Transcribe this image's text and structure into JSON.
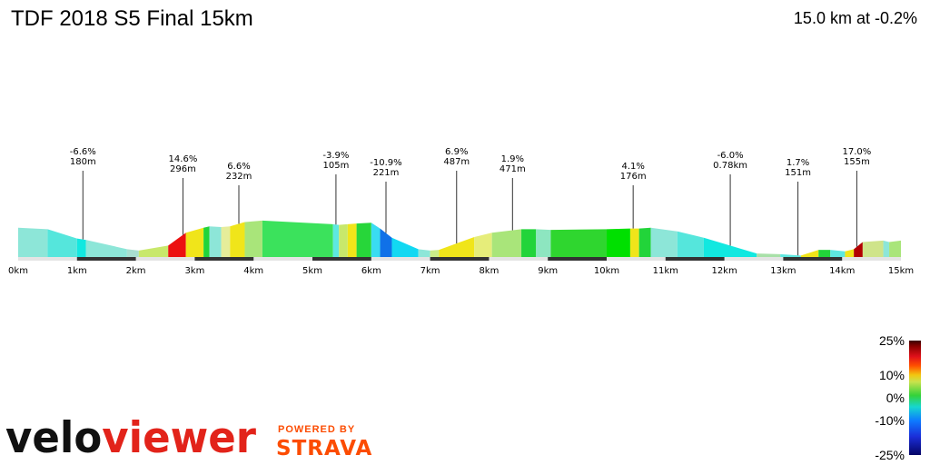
{
  "header": {
    "title": "TDF 2018 S5 Final 15km",
    "summary": "15.0 km at -0.2%"
  },
  "chart_data": {
    "type": "area",
    "title": "TDF 2018 S5 Final 15km",
    "xlabel": "",
    "ylabel": "",
    "xlim": [
      0,
      15
    ],
    "ylim": [
      0,
      70
    ],
    "x_ticks": [
      "0km",
      "1km",
      "2km",
      "3km",
      "4km",
      "5km",
      "6km",
      "7km",
      "8km",
      "9km",
      "10km",
      "11km",
      "12km",
      "13km",
      "14km",
      "15km"
    ],
    "segments": [
      {
        "x0": 0.0,
        "x1": 0.5,
        "e0": 41,
        "e1": 39,
        "color": "#8de6d8"
      },
      {
        "x0": 0.5,
        "x1": 1.0,
        "e0": 39,
        "e1": 26,
        "color": "#55e6dc"
      },
      {
        "x0": 1.0,
        "x1": 1.15,
        "e0": 26,
        "e1": 24,
        "color": "#12e8e0"
      },
      {
        "x0": 1.15,
        "x1": 1.85,
        "e0": 24,
        "e1": 11,
        "color": "#8de6d8"
      },
      {
        "x0": 1.85,
        "x1": 2.05,
        "e0": 11,
        "e1": 9,
        "color": "#a8dfd0"
      },
      {
        "x0": 2.05,
        "x1": 2.55,
        "e0": 9,
        "e1": 16,
        "color": "#c8e86b"
      },
      {
        "x0": 2.55,
        "x1": 2.85,
        "e0": 16,
        "e1": 34,
        "color": "#ec1111"
      },
      {
        "x0": 2.85,
        "x1": 3.15,
        "e0": 34,
        "e1": 41,
        "color": "#f0e51a"
      },
      {
        "x0": 3.15,
        "x1": 3.25,
        "e0": 41,
        "e1": 43,
        "color": "#22d43a"
      },
      {
        "x0": 3.25,
        "x1": 3.45,
        "e0": 43,
        "e1": 42,
        "color": "#8de6d8"
      },
      {
        "x0": 3.45,
        "x1": 3.6,
        "e0": 42,
        "e1": 43,
        "color": "#e6ed9a"
      },
      {
        "x0": 3.6,
        "x1": 3.85,
        "e0": 43,
        "e1": 49,
        "color": "#f0e51a"
      },
      {
        "x0": 3.85,
        "x1": 4.15,
        "e0": 49,
        "e1": 51,
        "color": "#a9e57a"
      },
      {
        "x0": 4.15,
        "x1": 5.35,
        "e0": 51,
        "e1": 46,
        "color": "#3be25c"
      },
      {
        "x0": 5.35,
        "x1": 5.45,
        "e0": 46,
        "e1": 45,
        "color": "#5ee8e0"
      },
      {
        "x0": 5.45,
        "x1": 5.6,
        "e0": 45,
        "e1": 46,
        "color": "#c8e86b"
      },
      {
        "x0": 5.6,
        "x1": 5.75,
        "e0": 46,
        "e1": 47,
        "color": "#f0e51a"
      },
      {
        "x0": 5.75,
        "x1": 6.0,
        "e0": 47,
        "e1": 48,
        "color": "#27d63a"
      },
      {
        "x0": 6.0,
        "x1": 6.15,
        "e0": 48,
        "e1": 40,
        "color": "#3adcf2"
      },
      {
        "x0": 6.15,
        "x1": 6.35,
        "e0": 40,
        "e1": 27,
        "color": "#1071e8"
      },
      {
        "x0": 6.35,
        "x1": 6.8,
        "e0": 27,
        "e1": 11,
        "color": "#12d8f2"
      },
      {
        "x0": 6.8,
        "x1": 7.0,
        "e0": 11,
        "e1": 9,
        "color": "#8de6d8"
      },
      {
        "x0": 7.0,
        "x1": 7.15,
        "e0": 9,
        "e1": 10,
        "color": "#ccee8a"
      },
      {
        "x0": 7.15,
        "x1": 7.75,
        "e0": 10,
        "e1": 28,
        "color": "#f0e51a"
      },
      {
        "x0": 7.75,
        "x1": 8.05,
        "e0": 28,
        "e1": 34,
        "color": "#e6ed7a"
      },
      {
        "x0": 8.05,
        "x1": 8.55,
        "e0": 34,
        "e1": 39,
        "color": "#a9e57a"
      },
      {
        "x0": 8.55,
        "x1": 8.8,
        "e0": 39,
        "e1": 39,
        "color": "#22d43a"
      },
      {
        "x0": 8.8,
        "x1": 9.05,
        "e0": 39,
        "e1": 38,
        "color": "#8de6c0"
      },
      {
        "x0": 9.05,
        "x1": 10.0,
        "e0": 38,
        "e1": 39,
        "color": "#2fd62f"
      },
      {
        "x0": 10.0,
        "x1": 10.4,
        "e0": 39,
        "e1": 40,
        "color": "#00e000"
      },
      {
        "x0": 10.4,
        "x1": 10.55,
        "e0": 40,
        "e1": 40,
        "color": "#f0e51a"
      },
      {
        "x0": 10.55,
        "x1": 10.75,
        "e0": 40,
        "e1": 41,
        "color": "#22d43a"
      },
      {
        "x0": 10.75,
        "x1": 11.2,
        "e0": 41,
        "e1": 36,
        "color": "#8de6d8"
      },
      {
        "x0": 11.2,
        "x1": 11.65,
        "e0": 36,
        "e1": 27,
        "color": "#55e6dc"
      },
      {
        "x0": 11.65,
        "x1": 12.55,
        "e0": 27,
        "e1": 5,
        "color": "#12e8e0"
      },
      {
        "x0": 12.55,
        "x1": 12.95,
        "e0": 5,
        "e1": 4,
        "color": "#a8e0a8"
      },
      {
        "x0": 12.95,
        "x1": 13.3,
        "e0": 4,
        "e1": 2,
        "color": "#5ee8e0"
      },
      {
        "x0": 13.3,
        "x1": 13.6,
        "e0": 2,
        "e1": 10,
        "color": "#f0e51a"
      },
      {
        "x0": 13.6,
        "x1": 13.8,
        "e0": 10,
        "e1": 10,
        "color": "#22d43a"
      },
      {
        "x0": 13.8,
        "x1": 14.05,
        "e0": 10,
        "e1": 8,
        "color": "#5ee8e0"
      },
      {
        "x0": 14.05,
        "x1": 14.2,
        "e0": 8,
        "e1": 11,
        "color": "#f0e51a"
      },
      {
        "x0": 14.2,
        "x1": 14.35,
        "e0": 11,
        "e1": 21,
        "color": "#b20000"
      },
      {
        "x0": 14.35,
        "x1": 14.7,
        "e0": 21,
        "e1": 23,
        "color": "#cfe48a"
      },
      {
        "x0": 14.7,
        "x1": 14.8,
        "e0": 23,
        "e1": 21,
        "color": "#8de6d8"
      },
      {
        "x0": 14.8,
        "x1": 15.0,
        "e0": 21,
        "e1": 23,
        "color": "#a9e57a"
      }
    ],
    "annotations": [
      {
        "x": 1.1,
        "grade": "-6.6%",
        "distance": "180m"
      },
      {
        "x": 2.8,
        "grade": "14.6%",
        "distance": "296m"
      },
      {
        "x": 3.75,
        "grade": "6.6%",
        "distance": "232m"
      },
      {
        "x": 5.4,
        "grade": "-3.9%",
        "distance": "105m"
      },
      {
        "x": 6.25,
        "grade": "-10.9%",
        "distance": "221m"
      },
      {
        "x": 7.45,
        "grade": "6.9%",
        "distance": "487m"
      },
      {
        "x": 8.4,
        "grade": "1.9%",
        "distance": "471m"
      },
      {
        "x": 10.45,
        "grade": "4.1%",
        "distance": "176m"
      },
      {
        "x": 12.1,
        "grade": "-6.0%",
        "distance": "0.78km"
      },
      {
        "x": 13.25,
        "grade": "1.7%",
        "distance": "151m"
      },
      {
        "x": 14.25,
        "grade": "17.0%",
        "distance": "155m"
      }
    ],
    "legend": {
      "labels": [
        "25%",
        "10%",
        "0%",
        "-10%",
        "-25%"
      ],
      "grades": [
        25,
        10,
        0,
        -10,
        -25
      ],
      "range": [
        -25,
        25
      ]
    }
  },
  "branding": {
    "veloviewer_logo_text": "veloviewer",
    "powered_by": "POWERED BY",
    "strava": "STRAVA",
    "strava_color": "#fc4c02"
  }
}
